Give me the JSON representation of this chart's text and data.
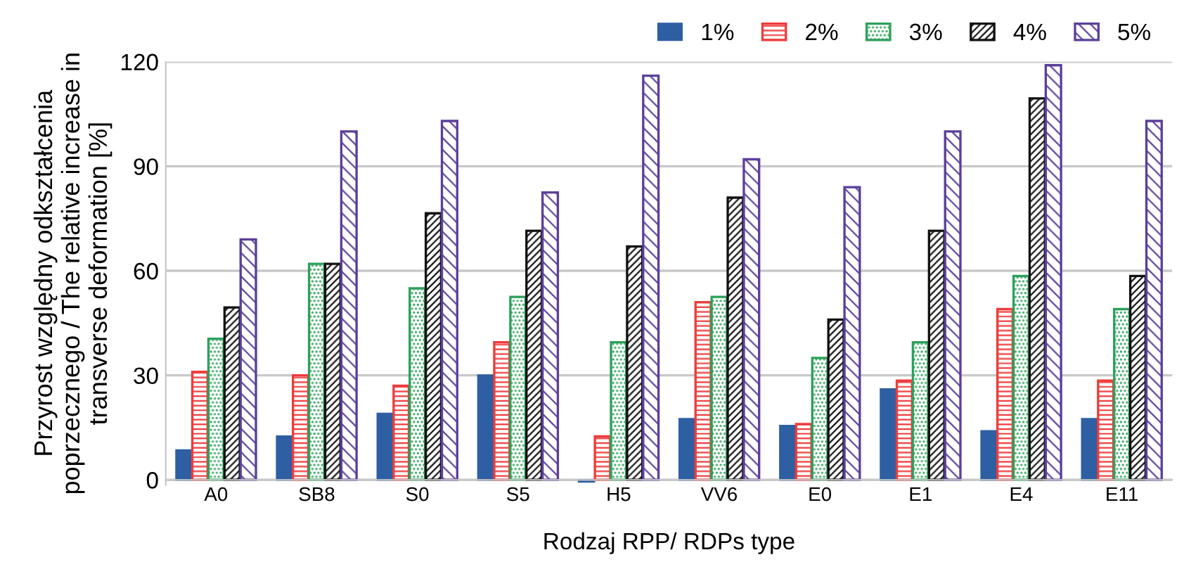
{
  "chart_data": {
    "type": "bar",
    "xlabel": "Rodzaj RPP/ RDPs type",
    "ylabel": "Przyrost względny odkształcenia\npoprzecznego / The relative increase in\ntransverse deformation [%]",
    "categories": [
      "A0",
      "SB8",
      "S0",
      "S5",
      "H5",
      "VV6",
      "E0",
      "E1",
      "E4",
      "E11"
    ],
    "series": [
      {
        "name": "1%",
        "color": "#2e5fa3",
        "values": [
          8.5,
          12.5,
          19,
          30,
          -0.5,
          17.5,
          15.5,
          26,
          14,
          17.5
        ]
      },
      {
        "name": "2%",
        "color": "#ee3b3b",
        "values": [
          31,
          30,
          27,
          39.5,
          12.5,
          51,
          16,
          28.5,
          49,
          28.5
        ]
      },
      {
        "name": "3%",
        "color": "#2ca05a",
        "values": [
          40.5,
          62,
          55,
          52.5,
          39.5,
          52.5,
          35,
          39.5,
          58.5,
          49
        ]
      },
      {
        "name": "4%",
        "color": "#111111",
        "values": [
          49.5,
          62,
          76.5,
          71.5,
          67,
          81,
          46,
          71.5,
          109.5,
          58.5
        ]
      },
      {
        "name": "5%",
        "color": "#5b3f9a",
        "values": [
          69,
          100,
          103,
          82.5,
          116,
          92,
          84,
          100,
          119,
          103
        ]
      }
    ],
    "ylim": [
      -1.5,
      120
    ],
    "yticks": [
      0,
      30,
      60,
      90,
      120
    ],
    "grid": "y",
    "legend": "top right"
  }
}
